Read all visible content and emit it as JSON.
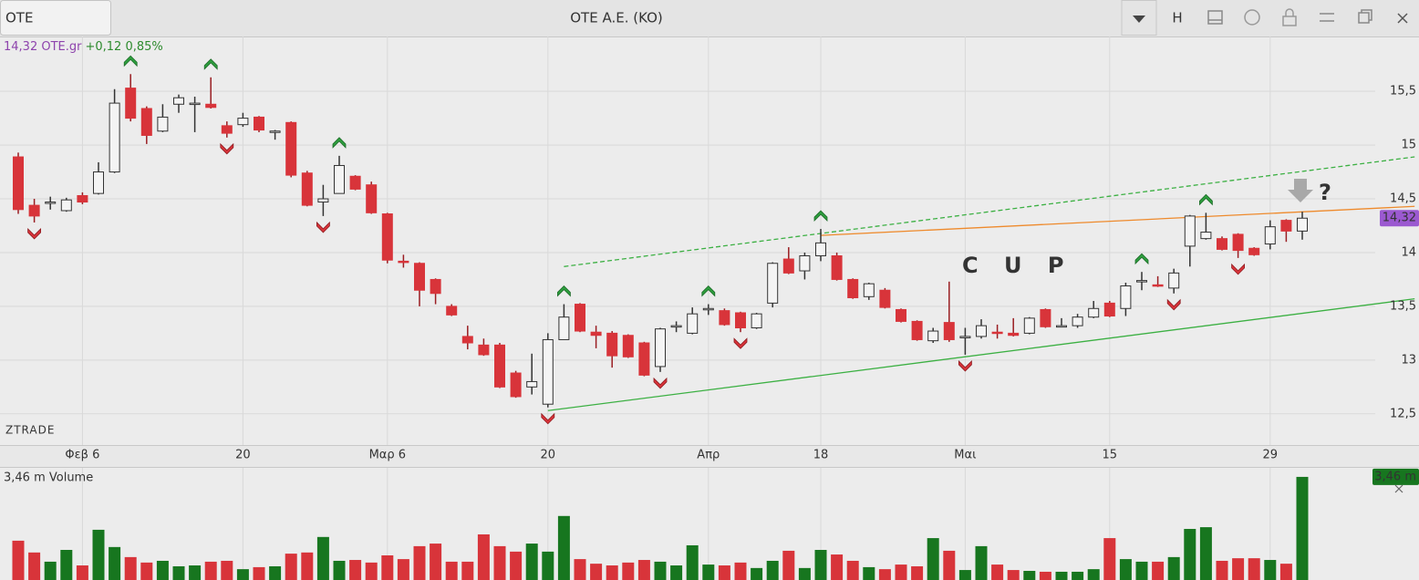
{
  "toolbar": {
    "symbol": "OTE",
    "title": "OTE A.E. (KO)",
    "button": "H"
  },
  "quote": {
    "price": "14,32 OTE.gr",
    "change": "+0,12 0,85%"
  },
  "watermark": "ZTRADE",
  "annotations": {
    "pattern": "C U P",
    "question": "?"
  },
  "chart_data": [
    {
      "type": "candlestick",
      "categories": [
        null,
        null,
        null,
        null,
        "Φεβ 6",
        null,
        null,
        null,
        null,
        null,
        null,
        null,
        null,
        null,
        "20",
        null,
        null,
        null,
        null,
        null,
        null,
        null,
        null,
        "Μαρ 6",
        null,
        null,
        null,
        null,
        null,
        null,
        null,
        null,
        null,
        "20",
        null,
        null,
        null,
        null,
        null,
        null,
        null,
        null,
        null,
        "Απρ",
        null,
        null,
        null,
        null,
        null,
        null,
        "18",
        null,
        null,
        null,
        null,
        null,
        null,
        null,
        null,
        "Μαι",
        null,
        null,
        null,
        null,
        null,
        null,
        null,
        null,
        "15",
        null,
        null,
        null,
        null,
        null,
        null,
        null,
        null,
        null,
        "29",
        null,
        null
      ],
      "ohlc": [
        [
          14.89,
          14.93,
          14.36,
          14.4
        ],
        [
          14.44,
          14.5,
          14.28,
          14.34
        ],
        [
          14.46,
          14.52,
          14.4,
          14.47
        ],
        [
          14.39,
          14.51,
          14.38,
          14.49
        ],
        [
          14.53,
          14.56,
          14.45,
          14.47
        ],
        [
          14.55,
          14.84,
          14.54,
          14.75
        ],
        [
          14.75,
          15.52,
          14.74,
          15.39
        ],
        [
          15.53,
          15.66,
          15.22,
          15.25
        ],
        [
          15.34,
          15.36,
          15.01,
          15.09
        ],
        [
          15.13,
          15.38,
          15.12,
          15.26
        ],
        [
          15.38,
          15.47,
          15.3,
          15.44
        ],
        [
          15.39,
          15.45,
          15.12,
          15.39
        ],
        [
          15.38,
          15.63,
          15.34,
          15.35
        ],
        [
          15.18,
          15.22,
          15.07,
          15.11
        ],
        [
          15.19,
          15.3,
          15.17,
          15.25
        ],
        [
          15.26,
          15.27,
          15.12,
          15.14
        ],
        [
          15.13,
          15.14,
          15.05,
          15.13
        ],
        [
          15.21,
          15.22,
          14.7,
          14.72
        ],
        [
          14.74,
          14.76,
          14.43,
          14.44
        ],
        [
          14.47,
          14.63,
          14.34,
          14.5
        ],
        [
          14.55,
          14.9,
          14.55,
          14.81
        ],
        [
          14.71,
          14.72,
          14.58,
          14.59
        ],
        [
          14.63,
          14.66,
          14.36,
          14.37
        ],
        [
          14.36,
          14.37,
          13.9,
          13.93
        ],
        [
          13.92,
          13.98,
          13.86,
          13.91
        ],
        [
          13.9,
          13.91,
          13.5,
          13.65
        ],
        [
          13.75,
          13.76,
          13.52,
          13.62
        ],
        [
          13.5,
          13.52,
          13.41,
          13.42
        ],
        [
          13.22,
          13.32,
          13.1,
          13.16
        ],
        [
          13.14,
          13.2,
          13.04,
          13.05
        ],
        [
          13.14,
          13.16,
          12.74,
          12.75
        ],
        [
          12.88,
          12.9,
          12.65,
          12.66
        ],
        [
          12.75,
          13.06,
          12.68,
          12.8
        ],
        [
          12.59,
          13.25,
          12.56,
          13.19
        ],
        [
          13.19,
          13.52,
          13.19,
          13.4
        ],
        [
          13.52,
          13.53,
          13.26,
          13.27
        ],
        [
          13.26,
          13.32,
          13.11,
          13.23
        ],
        [
          13.25,
          13.27,
          12.93,
          13.04
        ],
        [
          13.23,
          13.24,
          13.02,
          13.03
        ],
        [
          13.16,
          13.17,
          12.85,
          12.86
        ],
        [
          12.94,
          13.3,
          12.89,
          13.29
        ],
        [
          13.31,
          13.36,
          13.26,
          13.32
        ],
        [
          13.25,
          13.49,
          13.24,
          13.43
        ],
        [
          13.48,
          13.52,
          13.42,
          13.48
        ],
        [
          13.46,
          13.48,
          13.32,
          13.33
        ],
        [
          13.44,
          13.45,
          13.26,
          13.3
        ],
        [
          13.3,
          13.44,
          13.29,
          13.43
        ],
        [
          13.53,
          13.91,
          13.49,
          13.9
        ],
        [
          13.94,
          14.05,
          13.8,
          13.81
        ],
        [
          13.83,
          14.0,
          13.75,
          13.97
        ],
        [
          13.97,
          14.22,
          13.92,
          14.09
        ],
        [
          13.97,
          14.0,
          13.74,
          13.75
        ],
        [
          13.75,
          13.76,
          13.57,
          13.58
        ],
        [
          13.59,
          13.72,
          13.56,
          13.71
        ],
        [
          13.65,
          13.67,
          13.48,
          13.49
        ],
        [
          13.47,
          13.48,
          13.35,
          13.36
        ],
        [
          13.36,
          13.37,
          13.18,
          13.19
        ],
        [
          13.18,
          13.3,
          13.16,
          13.27
        ],
        [
          13.35,
          13.73,
          13.17,
          13.19
        ],
        [
          13.21,
          13.3,
          13.05,
          13.22
        ],
        [
          13.22,
          13.38,
          13.2,
          13.32
        ],
        [
          13.26,
          13.33,
          13.2,
          13.25
        ],
        [
          13.25,
          13.39,
          13.22,
          13.23
        ],
        [
          13.25,
          13.4,
          13.24,
          13.39
        ],
        [
          13.47,
          13.48,
          13.3,
          13.31
        ],
        [
          13.32,
          13.39,
          13.31,
          13.32
        ],
        [
          13.32,
          13.43,
          13.3,
          13.4
        ],
        [
          13.4,
          13.55,
          13.39,
          13.48
        ],
        [
          13.53,
          13.55,
          13.4,
          13.41
        ],
        [
          13.48,
          13.72,
          13.41,
          13.69
        ],
        [
          13.74,
          13.82,
          13.65,
          13.74
        ],
        [
          13.7,
          13.78,
          13.68,
          13.69
        ],
        [
          13.67,
          13.85,
          13.62,
          13.81
        ],
        [
          14.06,
          14.35,
          13.87,
          14.34
        ],
        [
          14.13,
          14.37,
          14.12,
          14.19
        ],
        [
          14.13,
          14.15,
          14.02,
          14.03
        ],
        [
          14.17,
          14.18,
          13.95,
          14.02
        ],
        [
          14.04,
          14.05,
          13.97,
          13.98
        ],
        [
          14.08,
          14.3,
          14.03,
          14.24
        ],
        [
          14.3,
          14.31,
          14.1,
          14.2
        ],
        [
          14.2,
          14.38,
          14.12,
          14.32
        ]
      ],
      "up_color": "#f4f4f4",
      "down_color": "#d8343a",
      "ylim": [
        12.21,
        16.01
      ],
      "yticks": [
        {
          "value": 12.5,
          "label": "12,5"
        },
        13,
        {
          "value": 13.5,
          "label": "13,5"
        },
        14,
        {
          "value": 14.5,
          "label": "14,5"
        },
        15,
        {
          "value": 15.5,
          "label": "15,5"
        }
      ],
      "grid": true,
      "last_value": 14.32,
      "last_label": "14,32",
      "signals_up": [
        7,
        12,
        20,
        34,
        43,
        50,
        70,
        74
      ],
      "signals_down": [
        1,
        13,
        19,
        33,
        40,
        45,
        59,
        72,
        76
      ],
      "trendlines": [
        {
          "color": "#3cb043",
          "dashed": true,
          "x": [
            34,
            87
          ],
          "y": [
            13.87,
            14.89
          ]
        },
        {
          "color": "#3cb043",
          "dashed": false,
          "x": [
            33,
            87
          ],
          "y": [
            12.53,
            13.57
          ]
        },
        {
          "color": "#ee8a2c",
          "dashed": false,
          "x": [
            50,
            87
          ],
          "y": [
            14.16,
            14.43
          ]
        }
      ]
    },
    {
      "type": "bar",
      "title": "3,46 m Volume",
      "values": [
        1.24,
        0.83,
        0.51,
        0.92,
        0.38,
        1.62,
        1.02,
        0.67,
        0.48,
        0.54,
        0.35,
        0.38,
        0.51,
        0.54,
        0.25,
        0.32,
        0.35,
        0.79,
        0.83,
        1.37,
        0.54,
        0.57,
        0.48,
        0.73,
        0.6,
        1.05,
        1.14,
        0.51,
        0.51,
        1.46,
        1.05,
        0.86,
        1.14,
        0.86,
        2.1,
        0.6,
        0.44,
        0.38,
        0.48,
        0.57,
        0.51,
        0.38,
        1.08,
        0.41,
        0.38,
        0.48,
        0.29,
        0.54,
        0.89,
        0.29,
        0.92,
        0.76,
        0.54,
        0.32,
        0.25,
        0.41,
        0.35,
        1.33,
        0.89,
        0.22,
        1.05,
        0.41,
        0.22,
        0.19,
        0.16,
        0.16,
        0.16,
        0.25,
        1.33,
        0.6,
        0.51,
        0.51,
        0.67,
        1.65,
        1.71,
        0.54,
        0.63,
        0.63,
        0.57,
        0.44,
        3.46
      ],
      "up_color": "#17761f",
      "down_color": "#d8343a",
      "ylim": [
        0,
        3.87
      ],
      "last_label": "3,46 m"
    }
  ]
}
